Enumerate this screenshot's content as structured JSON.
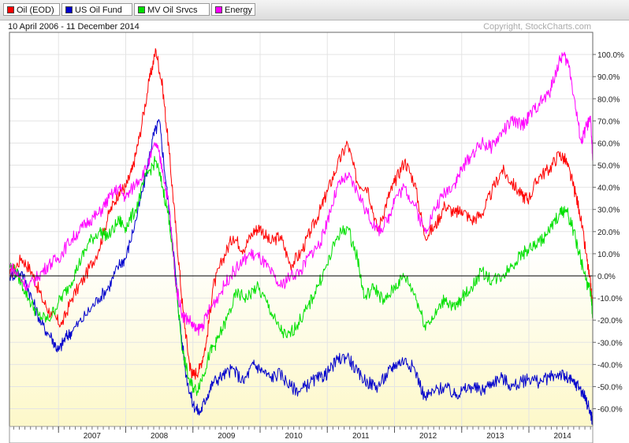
{
  "legend": [
    {
      "label": "Oil (EOD)",
      "color": "#ff0000"
    },
    {
      "label": "US Oil Fund",
      "color": "#0000cc"
    },
    {
      "label": "MV Oil Srvcs",
      "color": "#00e000"
    },
    {
      "label": "Energy",
      "color": "#ff00ff"
    }
  ],
  "subtitle_left": "10 April 2006 - 11 December 2014",
  "copyright": "Copyright, StockCharts.com",
  "chart_data": {
    "type": "line",
    "x_axis": {
      "min": 2006.27,
      "max": 2014.95,
      "tick_labels": [
        "2007",
        "2008",
        "2009",
        "2010",
        "2011",
        "2012",
        "2013",
        "2014"
      ]
    },
    "y_axis": {
      "min": -68,
      "max": 110,
      "unit": "%",
      "tick_labels": [
        "100.0%",
        "90.0%",
        "80.0%",
        "70.0%",
        "60.0%",
        "50.0%",
        "40.0%",
        "30.0%",
        "20.0%",
        "10.0%",
        "0.0%",
        "-10.0%",
        "-20.0%",
        "-30.0%",
        "-40.0%",
        "-50.0%",
        "-60.0%"
      ]
    },
    "grid": true,
    "legend_position": "top-left",
    "series": [
      {
        "name": "Oil (EOD)",
        "color": "#ff0000",
        "points": [
          [
            2006.27,
            0
          ],
          [
            2006.45,
            8
          ],
          [
            2006.6,
            2
          ],
          [
            2006.75,
            -10
          ],
          [
            2006.9,
            -18
          ],
          [
            2007.05,
            -22
          ],
          [
            2007.2,
            -10
          ],
          [
            2007.4,
            0
          ],
          [
            2007.6,
            12
          ],
          [
            2007.75,
            28
          ],
          [
            2007.9,
            38
          ],
          [
            2008.0,
            40
          ],
          [
            2008.1,
            48
          ],
          [
            2008.2,
            62
          ],
          [
            2008.35,
            88
          ],
          [
            2008.45,
            102
          ],
          [
            2008.55,
            85
          ],
          [
            2008.65,
            55
          ],
          [
            2008.75,
            20
          ],
          [
            2008.85,
            -15
          ],
          [
            2008.95,
            -40
          ],
          [
            2009.0,
            -45
          ],
          [
            2009.1,
            -42
          ],
          [
            2009.2,
            -30
          ],
          [
            2009.3,
            -5
          ],
          [
            2009.45,
            8
          ],
          [
            2009.6,
            18
          ],
          [
            2009.75,
            12
          ],
          [
            2009.9,
            20
          ],
          [
            2010.0,
            22
          ],
          [
            2010.15,
            15
          ],
          [
            2010.3,
            18
          ],
          [
            2010.45,
            5
          ],
          [
            2010.6,
            10
          ],
          [
            2010.75,
            20
          ],
          [
            2010.9,
            30
          ],
          [
            2011.0,
            38
          ],
          [
            2011.15,
            50
          ],
          [
            2011.3,
            60
          ],
          [
            2011.45,
            42
          ],
          [
            2011.6,
            40
          ],
          [
            2011.75,
            20
          ],
          [
            2011.9,
            35
          ],
          [
            2012.0,
            42
          ],
          [
            2012.15,
            52
          ],
          [
            2012.3,
            42
          ],
          [
            2012.45,
            18
          ],
          [
            2012.6,
            22
          ],
          [
            2012.75,
            32
          ],
          [
            2012.9,
            28
          ],
          [
            2013.0,
            30
          ],
          [
            2013.15,
            25
          ],
          [
            2013.3,
            28
          ],
          [
            2013.45,
            38
          ],
          [
            2013.6,
            48
          ],
          [
            2013.75,
            42
          ],
          [
            2013.9,
            36
          ],
          [
            2014.0,
            35
          ],
          [
            2014.15,
            45
          ],
          [
            2014.3,
            48
          ],
          [
            2014.45,
            55
          ],
          [
            2014.55,
            52
          ],
          [
            2014.65,
            42
          ],
          [
            2014.75,
            30
          ],
          [
            2014.85,
            10
          ],
          [
            2014.92,
            -5
          ],
          [
            2014.95,
            -15
          ]
        ]
      },
      {
        "name": "US Oil Fund",
        "color": "#0000cc",
        "points": [
          [
            2006.27,
            0
          ],
          [
            2006.45,
            2
          ],
          [
            2006.6,
            -10
          ],
          [
            2006.75,
            -22
          ],
          [
            2006.9,
            -28
          ],
          [
            2007.0,
            -34
          ],
          [
            2007.1,
            -28
          ],
          [
            2007.2,
            -25
          ],
          [
            2007.4,
            -18
          ],
          [
            2007.6,
            -10
          ],
          [
            2007.75,
            -5
          ],
          [
            2007.9,
            5
          ],
          [
            2008.0,
            8
          ],
          [
            2008.15,
            25
          ],
          [
            2008.3,
            45
          ],
          [
            2008.4,
            62
          ],
          [
            2008.5,
            70
          ],
          [
            2008.6,
            42
          ],
          [
            2008.7,
            15
          ],
          [
            2008.8,
            -20
          ],
          [
            2008.9,
            -45
          ],
          [
            2009.0,
            -58
          ],
          [
            2009.1,
            -62
          ],
          [
            2009.2,
            -55
          ],
          [
            2009.3,
            -48
          ],
          [
            2009.45,
            -45
          ],
          [
            2009.6,
            -42
          ],
          [
            2009.75,
            -48
          ],
          [
            2009.9,
            -40
          ],
          [
            2010.0,
            -42
          ],
          [
            2010.15,
            -46
          ],
          [
            2010.3,
            -44
          ],
          [
            2010.45,
            -50
          ],
          [
            2010.6,
            -52
          ],
          [
            2010.75,
            -48
          ],
          [
            2010.9,
            -46
          ],
          [
            2011.0,
            -44
          ],
          [
            2011.15,
            -38
          ],
          [
            2011.3,
            -36
          ],
          [
            2011.45,
            -44
          ],
          [
            2011.6,
            -48
          ],
          [
            2011.75,
            -50
          ],
          [
            2011.9,
            -44
          ],
          [
            2012.0,
            -40
          ],
          [
            2012.15,
            -38
          ],
          [
            2012.3,
            -42
          ],
          [
            2012.45,
            -55
          ],
          [
            2012.6,
            -52
          ],
          [
            2012.75,
            -50
          ],
          [
            2012.9,
            -54
          ],
          [
            2013.0,
            -52
          ],
          [
            2013.15,
            -50
          ],
          [
            2013.3,
            -52
          ],
          [
            2013.45,
            -48
          ],
          [
            2013.6,
            -46
          ],
          [
            2013.75,
            -50
          ],
          [
            2013.9,
            -48
          ],
          [
            2014.0,
            -46
          ],
          [
            2014.15,
            -48
          ],
          [
            2014.3,
            -46
          ],
          [
            2014.45,
            -44
          ],
          [
            2014.55,
            -46
          ],
          [
            2014.65,
            -48
          ],
          [
            2014.75,
            -50
          ],
          [
            2014.85,
            -56
          ],
          [
            2014.92,
            -62
          ],
          [
            2014.95,
            -66
          ]
        ]
      },
      {
        "name": "MV Oil Srvcs",
        "color": "#00e000",
        "points": [
          [
            2006.27,
            5
          ],
          [
            2006.4,
            0
          ],
          [
            2006.55,
            -10
          ],
          [
            2006.7,
            -18
          ],
          [
            2006.85,
            -20
          ],
          [
            2007.0,
            -12
          ],
          [
            2007.15,
            -5
          ],
          [
            2007.3,
            5
          ],
          [
            2007.45,
            15
          ],
          [
            2007.6,
            20
          ],
          [
            2007.75,
            18
          ],
          [
            2007.9,
            25
          ],
          [
            2008.0,
            22
          ],
          [
            2008.15,
            30
          ],
          [
            2008.3,
            45
          ],
          [
            2008.45,
            52
          ],
          [
            2008.55,
            40
          ],
          [
            2008.65,
            25
          ],
          [
            2008.75,
            -5
          ],
          [
            2008.85,
            -35
          ],
          [
            2008.95,
            -48
          ],
          [
            2009.05,
            -52
          ],
          [
            2009.15,
            -45
          ],
          [
            2009.25,
            -35
          ],
          [
            2009.35,
            -30
          ],
          [
            2009.5,
            -20
          ],
          [
            2009.65,
            -8
          ],
          [
            2009.8,
            -10
          ],
          [
            2009.95,
            -5
          ],
          [
            2010.1,
            -12
          ],
          [
            2010.25,
            -22
          ],
          [
            2010.4,
            -28
          ],
          [
            2010.55,
            -22
          ],
          [
            2010.7,
            -15
          ],
          [
            2010.85,
            -5
          ],
          [
            2011.0,
            5
          ],
          [
            2011.15,
            18
          ],
          [
            2011.3,
            22
          ],
          [
            2011.45,
            8
          ],
          [
            2011.55,
            -10
          ],
          [
            2011.7,
            -5
          ],
          [
            2011.85,
            -12
          ],
          [
            2012.0,
            -5
          ],
          [
            2012.15,
            0
          ],
          [
            2012.3,
            -8
          ],
          [
            2012.45,
            -22
          ],
          [
            2012.6,
            -18
          ],
          [
            2012.75,
            -10
          ],
          [
            2012.9,
            -15
          ],
          [
            2013.0,
            -10
          ],
          [
            2013.15,
            -5
          ],
          [
            2013.3,
            2
          ],
          [
            2013.45,
            -2
          ],
          [
            2013.6,
            0
          ],
          [
            2013.75,
            5
          ],
          [
            2013.9,
            10
          ],
          [
            2014.0,
            12
          ],
          [
            2014.15,
            15
          ],
          [
            2014.3,
            20
          ],
          [
            2014.45,
            28
          ],
          [
            2014.55,
            30
          ],
          [
            2014.65,
            22
          ],
          [
            2014.75,
            10
          ],
          [
            2014.85,
            -2
          ],
          [
            2014.92,
            -8
          ],
          [
            2014.95,
            -18
          ]
        ]
      },
      {
        "name": "Energy",
        "color": "#ff00ff",
        "points": [
          [
            2006.27,
            5
          ],
          [
            2006.4,
            0
          ],
          [
            2006.55,
            -5
          ],
          [
            2006.7,
            0
          ],
          [
            2006.85,
            5
          ],
          [
            2007.0,
            8
          ],
          [
            2007.15,
            15
          ],
          [
            2007.3,
            20
          ],
          [
            2007.45,
            25
          ],
          [
            2007.6,
            28
          ],
          [
            2007.75,
            35
          ],
          [
            2007.9,
            40
          ],
          [
            2008.0,
            35
          ],
          [
            2008.15,
            42
          ],
          [
            2008.3,
            48
          ],
          [
            2008.45,
            60
          ],
          [
            2008.55,
            48
          ],
          [
            2008.65,
            30
          ],
          [
            2008.75,
            -5
          ],
          [
            2008.85,
            -18
          ],
          [
            2008.95,
            -20
          ],
          [
            2009.05,
            -25
          ],
          [
            2009.15,
            -22
          ],
          [
            2009.25,
            -15
          ],
          [
            2009.4,
            -8
          ],
          [
            2009.55,
            0
          ],
          [
            2009.7,
            5
          ],
          [
            2009.85,
            10
          ],
          [
            2010.0,
            8
          ],
          [
            2010.15,
            2
          ],
          [
            2010.3,
            -5
          ],
          [
            2010.45,
            0
          ],
          [
            2010.6,
            2
          ],
          [
            2010.75,
            10
          ],
          [
            2010.9,
            15
          ],
          [
            2011.0,
            25
          ],
          [
            2011.15,
            40
          ],
          [
            2011.3,
            45
          ],
          [
            2011.45,
            38
          ],
          [
            2011.6,
            28
          ],
          [
            2011.75,
            20
          ],
          [
            2011.9,
            25
          ],
          [
            2012.0,
            35
          ],
          [
            2012.15,
            40
          ],
          [
            2012.3,
            32
          ],
          [
            2012.45,
            20
          ],
          [
            2012.6,
            30
          ],
          [
            2012.75,
            38
          ],
          [
            2012.9,
            42
          ],
          [
            2013.0,
            48
          ],
          [
            2013.15,
            55
          ],
          [
            2013.3,
            60
          ],
          [
            2013.45,
            58
          ],
          [
            2013.6,
            65
          ],
          [
            2013.75,
            70
          ],
          [
            2013.9,
            68
          ],
          [
            2014.0,
            72
          ],
          [
            2014.15,
            78
          ],
          [
            2014.3,
            82
          ],
          [
            2014.4,
            92
          ],
          [
            2014.5,
            100
          ],
          [
            2014.6,
            95
          ],
          [
            2014.7,
            75
          ],
          [
            2014.78,
            60
          ],
          [
            2014.86,
            68
          ],
          [
            2014.92,
            70
          ],
          [
            2014.95,
            52
          ]
        ]
      }
    ]
  }
}
